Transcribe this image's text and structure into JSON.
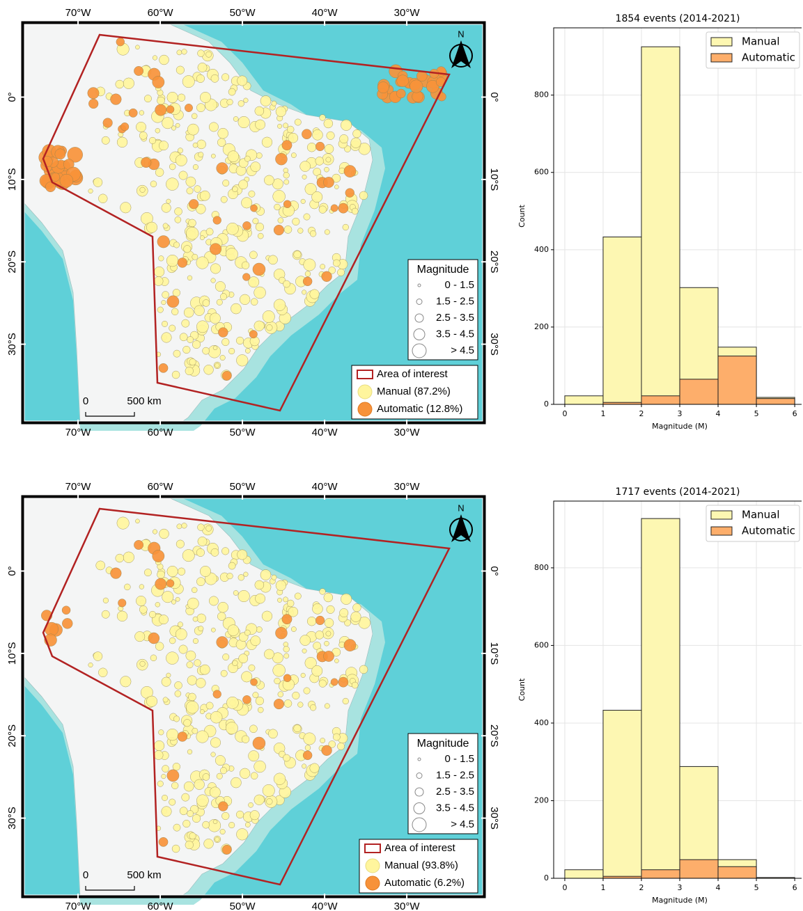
{
  "chart_data": [
    {
      "type": "map",
      "xlim": [
        -76.7,
        -20.6
      ],
      "ylim": [
        -39.5,
        9
      ],
      "xticks": [
        {
          "value": -70,
          "label": "70°W"
        },
        {
          "value": -60,
          "label": "60°W"
        },
        {
          "value": -50,
          "label": "50°W"
        },
        {
          "value": -40,
          "label": "40°W"
        },
        {
          "value": -30,
          "label": "30°W"
        }
      ],
      "yticks": [
        {
          "value": 0,
          "label": "0°"
        },
        {
          "value": -10,
          "label": "10°S"
        },
        {
          "value": -20,
          "label": "20°S"
        },
        {
          "value": -30,
          "label": "30°S"
        }
      ],
      "size_legend": {
        "title": "Magnitude",
        "labels": [
          "0 - 1.5",
          "1.5 - 2.5",
          "2.5 - 3.5",
          "3.5 - 4.5",
          "> 4.5"
        ]
      },
      "layers": [
        {
          "name": "Area of interest",
          "color": "#b22222"
        },
        {
          "name": "Manual (87.2%)",
          "color": "#fff59d"
        },
        {
          "name": "Automatic (12.8%)",
          "color": "#f7923a"
        }
      ],
      "scale_labels": [
        "0",
        "500 km"
      ],
      "north": "N"
    },
    {
      "type": "histogram",
      "title": "1854 events (2014-2021)",
      "xlabel": "Magnitude (M)",
      "ylabel": "Count",
      "bins": [
        0,
        1,
        2,
        3,
        4,
        5,
        6
      ],
      "xlim": [
        -0.29,
        6.18
      ],
      "ylim": [
        0,
        974
      ],
      "xticks": [
        0,
        1,
        2,
        3,
        4,
        5,
        6
      ],
      "yticks": [
        0,
        200,
        400,
        600,
        800
      ],
      "grid": true,
      "series": [
        {
          "name": "Manual",
          "color": "#fdf7b2",
          "values": [
            22,
            433,
            925,
            302,
            148,
            18
          ]
        },
        {
          "name": "Automatic",
          "color": "#fdae6b",
          "values": [
            0,
            5,
            22,
            65,
            125,
            15
          ]
        }
      ]
    },
    {
      "type": "map",
      "xlim": [
        -76.7,
        -20.6
      ],
      "ylim": [
        -39.5,
        9
      ],
      "xticks": [
        {
          "value": -70,
          "label": "70°W"
        },
        {
          "value": -60,
          "label": "60°W"
        },
        {
          "value": -50,
          "label": "50°W"
        },
        {
          "value": -40,
          "label": "40°W"
        },
        {
          "value": -30,
          "label": "30°W"
        }
      ],
      "yticks": [
        {
          "value": 0,
          "label": "0°"
        },
        {
          "value": -10,
          "label": "10°S"
        },
        {
          "value": -20,
          "label": "20°S"
        },
        {
          "value": -30,
          "label": "30°S"
        }
      ],
      "size_legend": {
        "title": "Magnitude",
        "labels": [
          "0 - 1.5",
          "1.5 - 2.5",
          "2.5 - 3.5",
          "3.5 - 4.5",
          "> 4.5"
        ]
      },
      "layers": [
        {
          "name": "Area of interest",
          "color": "#b22222"
        },
        {
          "name": "Manual (93.8%)",
          "color": "#fff59d"
        },
        {
          "name": "Automatic (6.2%)",
          "color": "#f7923a"
        }
      ],
      "scale_labels": [
        "0",
        "500 km"
      ],
      "north": "N"
    },
    {
      "type": "histogram",
      "title": "1717 events (2014-2021)",
      "xlabel": "Magnitude (M)",
      "ylabel": "Count",
      "bins": [
        0,
        1,
        2,
        3,
        4,
        5,
        6
      ],
      "xlim": [
        -0.29,
        6.18
      ],
      "ylim": [
        0,
        972
      ],
      "xticks": [
        0,
        1,
        2,
        3,
        4,
        5,
        6
      ],
      "yticks": [
        0,
        200,
        400,
        600,
        800
      ],
      "grid": true,
      "series": [
        {
          "name": "Manual",
          "color": "#fdf7b2",
          "values": [
            22,
            433,
            927,
            288,
            48,
            2
          ]
        },
        {
          "name": "Automatic",
          "color": "#fdae6b",
          "values": [
            0,
            5,
            22,
            48,
            30,
            0
          ]
        }
      ]
    }
  ]
}
